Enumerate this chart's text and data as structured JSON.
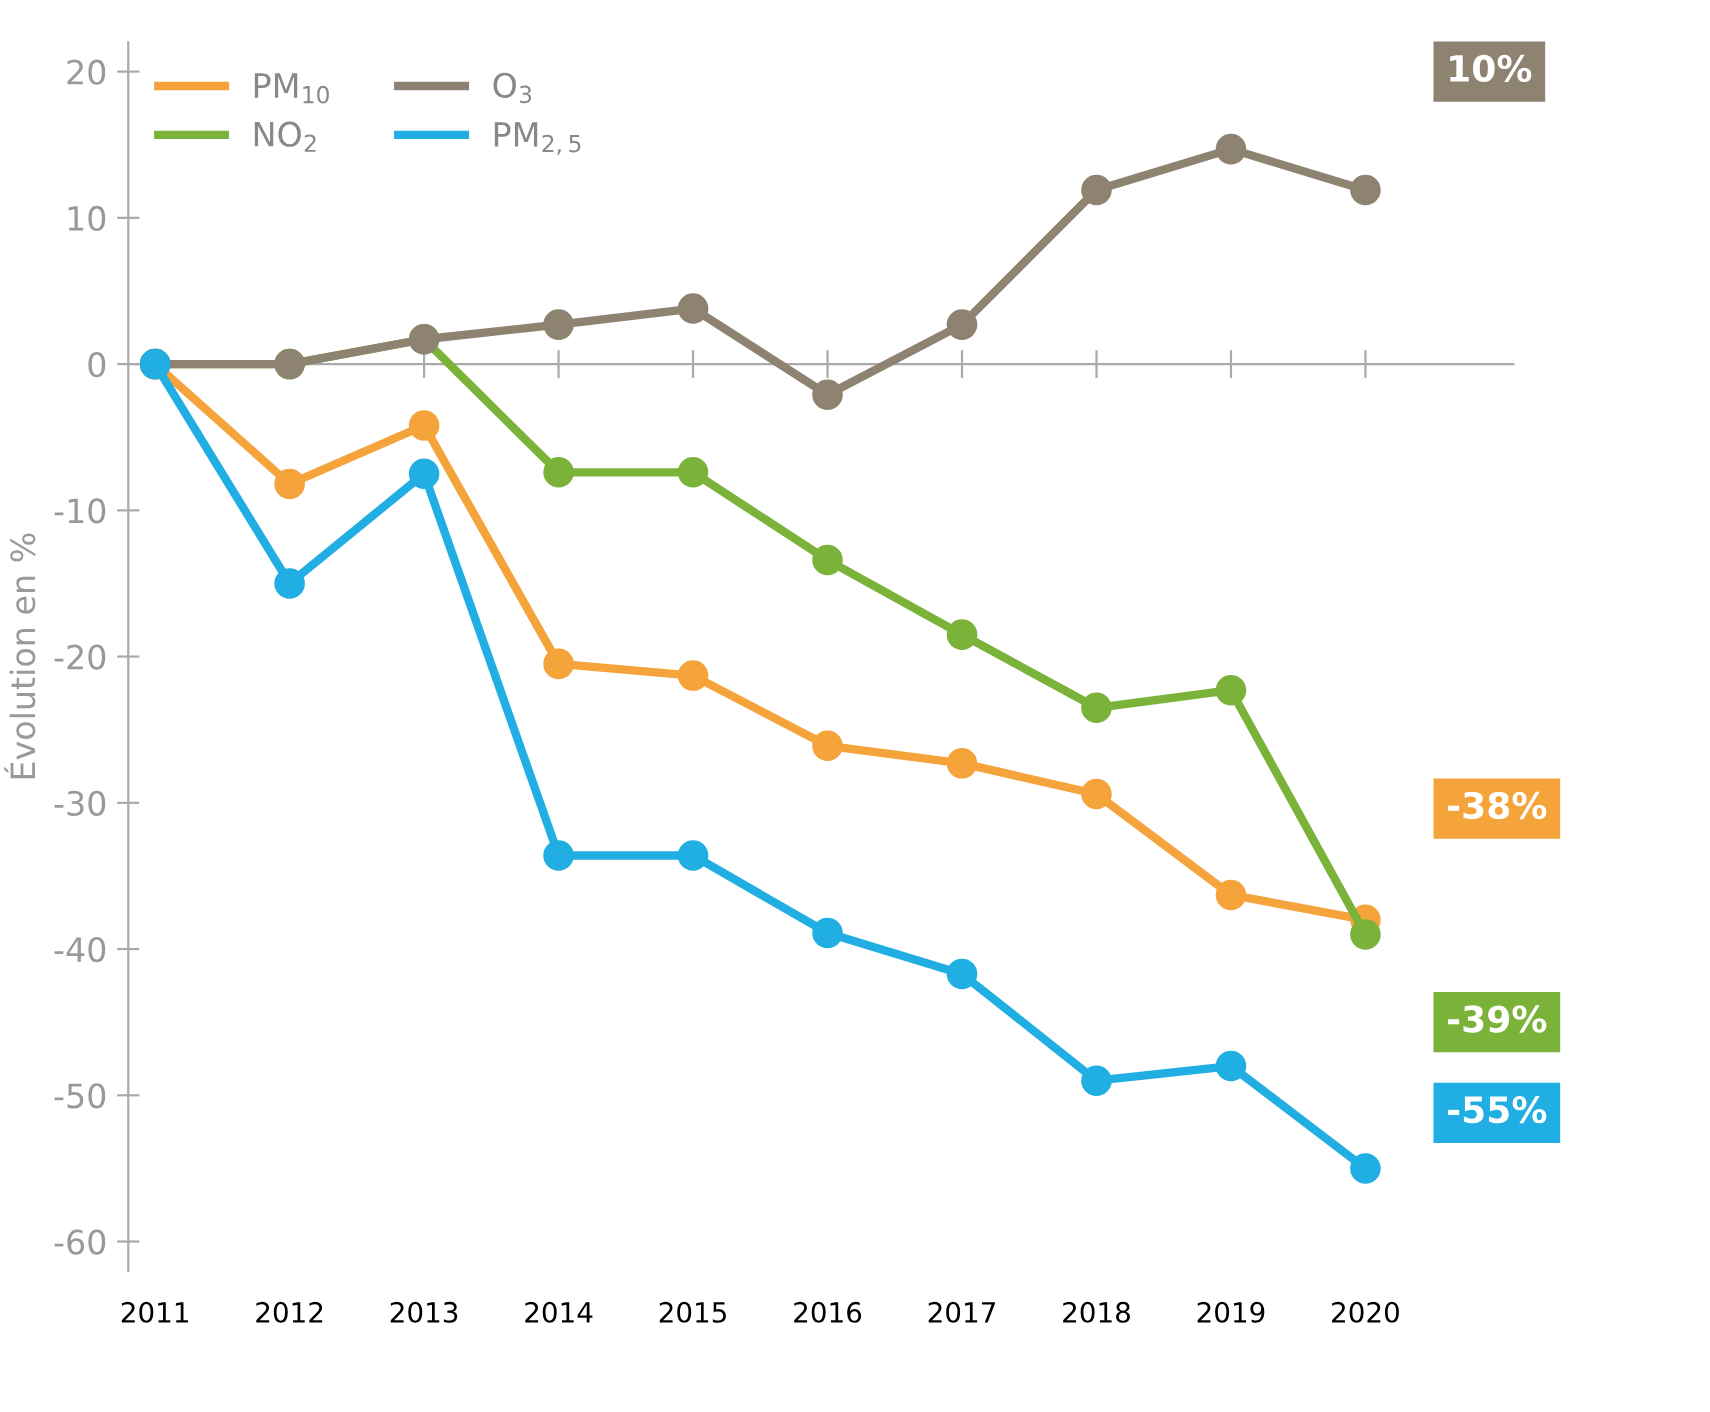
{
  "chart_data": {
    "type": "line",
    "ylabel": "Évolution en %",
    "x": [
      2011,
      2012,
      2013,
      2014,
      2015,
      2016,
      2017,
      2018,
      2019,
      2020
    ],
    "xlim": [
      2010.8,
      2021.1
    ],
    "xticks": [
      2011,
      2012,
      2013,
      2014,
      2015,
      2016,
      2017,
      2018,
      2019,
      2020
    ],
    "ylim": [
      -62,
      22
    ],
    "yticks": [
      -60,
      -50,
      -40,
      -30,
      -20,
      -10,
      0,
      10,
      20
    ],
    "legend": "top left",
    "marker": "circle",
    "line_style": "solid",
    "series": [
      {
        "name": "PM$_{10}$",
        "color": "#f5a33b",
        "values": [
          0,
          -8.2,
          -4.2,
          -20.5,
          -21.3,
          -26.1,
          -27.3,
          -29.4,
          -36.3,
          -38
        ]
      },
      {
        "name": "NO$_{2}$",
        "color": "#7bb33a",
        "values": [
          0,
          0,
          1.7,
          -7.4,
          -7.4,
          -13.4,
          -18.5,
          -23.5,
          -22.3,
          -39
        ]
      },
      {
        "name": "O$_{3}$",
        "color": "#8e8270",
        "values": [
          0,
          0,
          1.7,
          2.7,
          3.8,
          -2.1,
          2.7,
          11.9,
          14.7,
          11.9
        ]
      },
      {
        "name": "PM$_{2,5}$",
        "color": "#20aee3",
        "values": [
          0,
          -15,
          -7.5,
          -33.6,
          -33.6,
          -38.9,
          -41.7,
          -49,
          -48,
          -55
        ]
      }
    ],
    "annotations": [
      "-38%",
      "-39%",
      "10%",
      "-55%"
    ]
  }
}
